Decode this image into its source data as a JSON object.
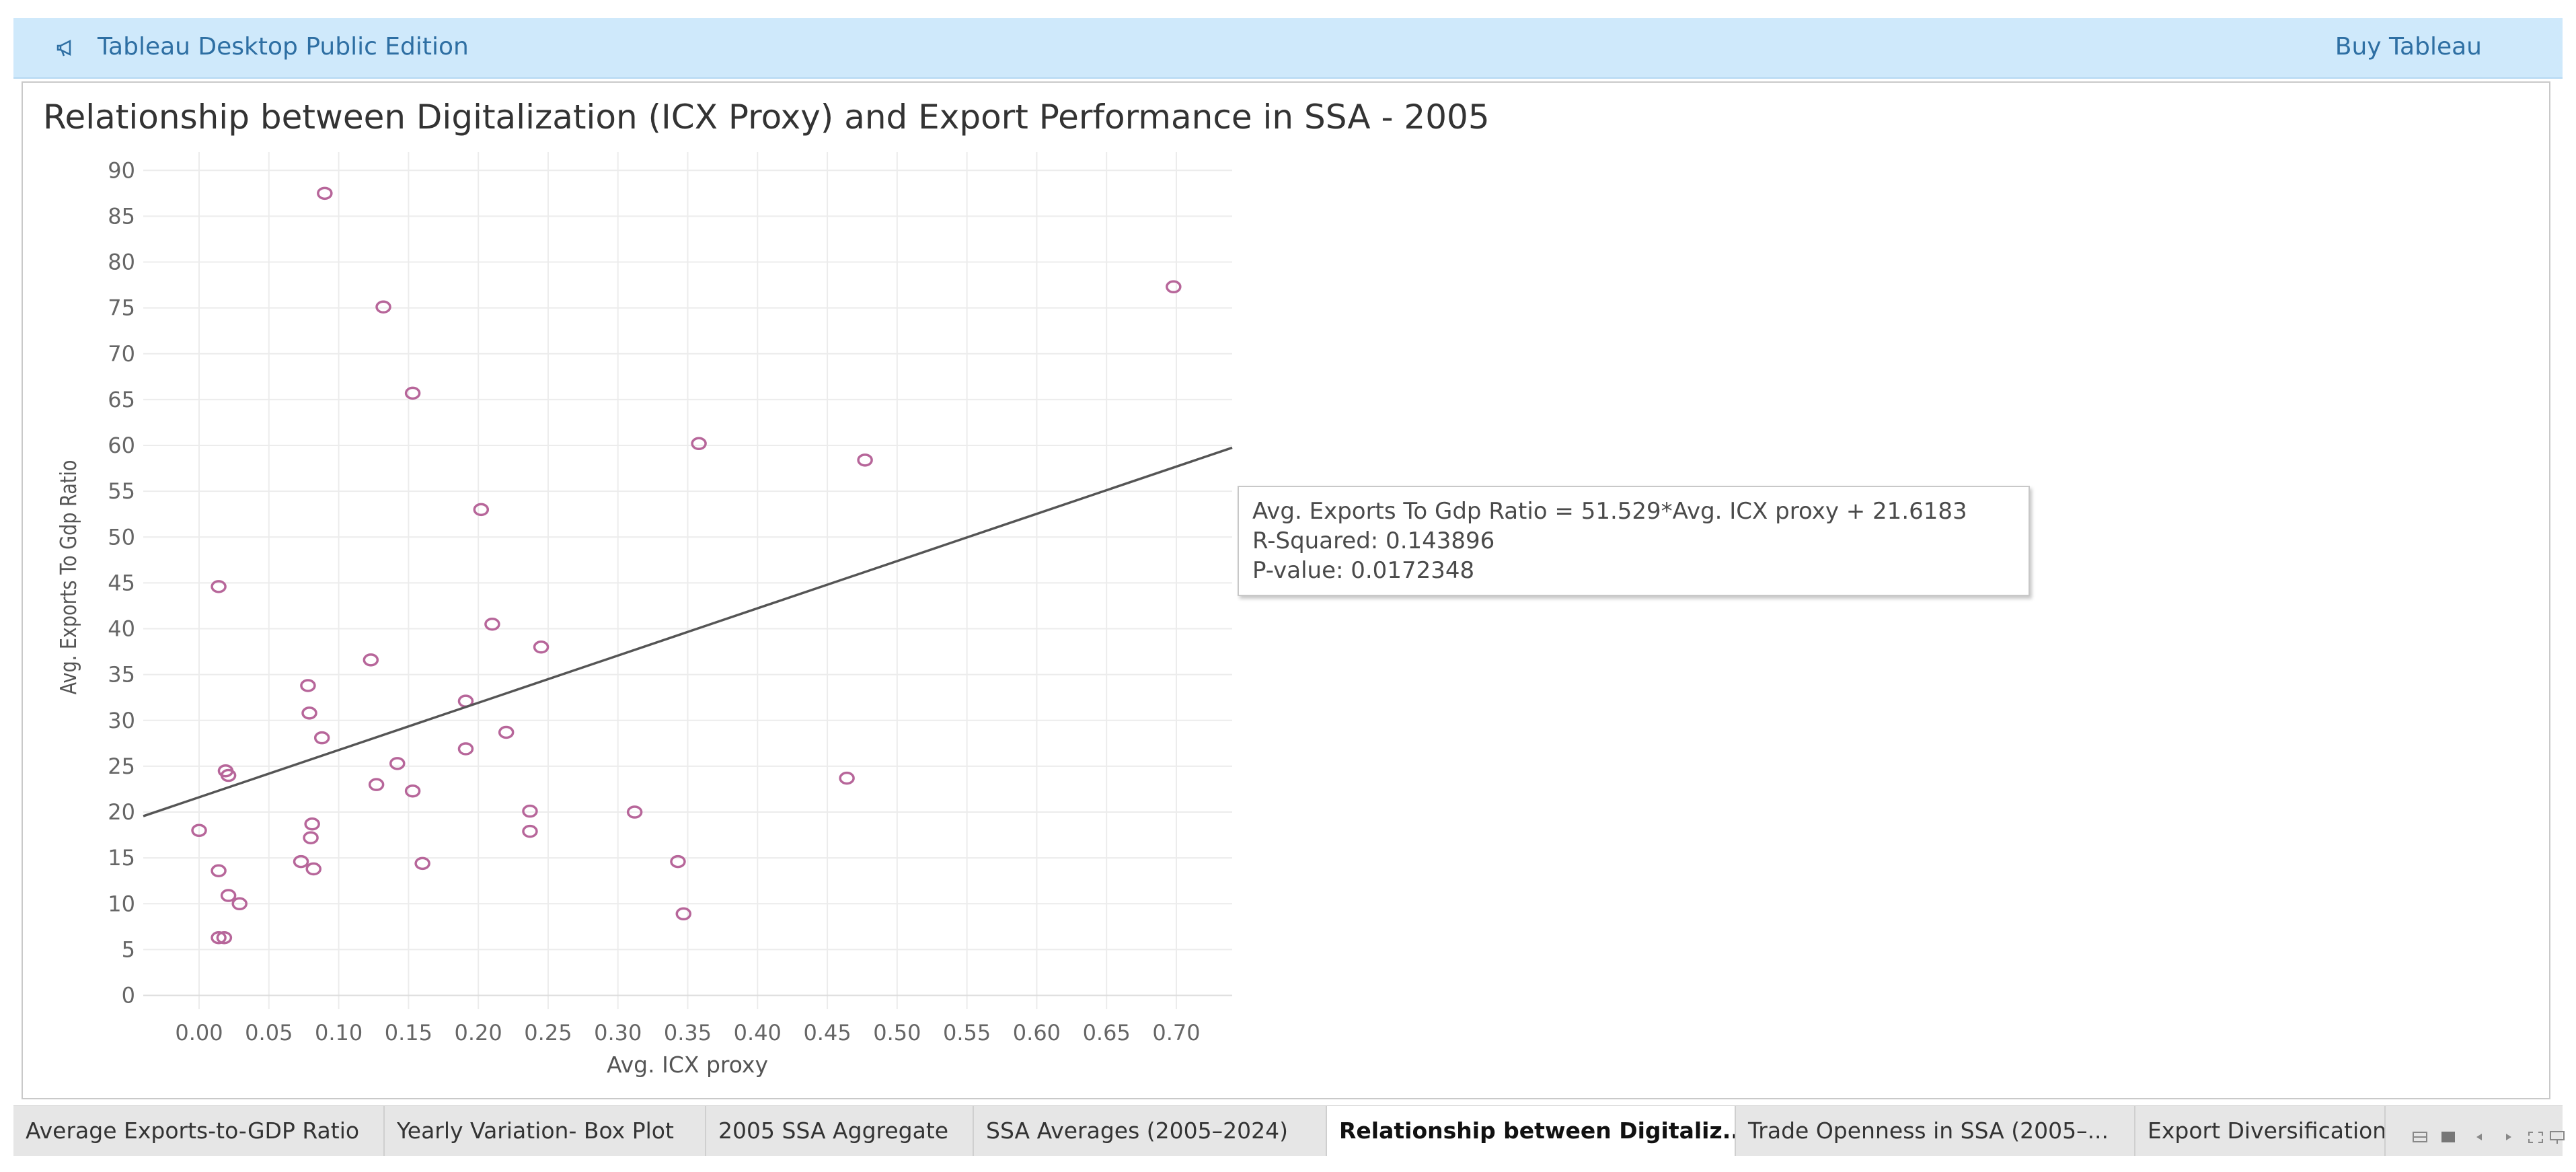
{
  "banner": {
    "title": "Tableau Desktop Public Edition",
    "buy_label": "Buy Tableau",
    "icon": "megaphone-icon",
    "background_color": "#cfe9fb",
    "text_color": "#2e6fa3"
  },
  "viz": {
    "title": "Relationship between Digitalization (ICX Proxy) and Export Performance in SSA - 2005"
  },
  "chart_data": {
    "type": "scatter",
    "title": "Relationship between Digitalization (ICX Proxy) and Export Performance in SSA - 2005",
    "xlabel": "Avg. ICX proxy",
    "ylabel": "Avg. Exports To Gdp Ratio",
    "xlim": [
      -0.04,
      0.74
    ],
    "ylim": [
      -1.5,
      92
    ],
    "x_ticks": [
      "0.00",
      "0.05",
      "0.10",
      "0.15",
      "0.20",
      "0.25",
      "0.30",
      "0.35",
      "0.40",
      "0.45",
      "0.50",
      "0.55",
      "0.60",
      "0.65",
      "0.70"
    ],
    "x_tick_values": [
      0,
      0.05,
      0.1,
      0.15,
      0.2,
      0.25,
      0.3,
      0.35,
      0.4,
      0.45,
      0.5,
      0.55,
      0.6,
      0.65,
      0.7
    ],
    "y_ticks": [
      "0",
      "5",
      "10",
      "15",
      "20",
      "25",
      "30",
      "35",
      "40",
      "45",
      "50",
      "55",
      "60",
      "65",
      "70",
      "75",
      "80",
      "85",
      "90"
    ],
    "y_tick_values": [
      0,
      5,
      10,
      15,
      20,
      25,
      30,
      35,
      40,
      45,
      50,
      55,
      60,
      65,
      70,
      75,
      80,
      85,
      90
    ],
    "grid": true,
    "marker_color": "#b7669a",
    "series": [
      {
        "name": "Countries",
        "points": [
          [
            0.09,
            87.5
          ],
          [
            0.132,
            75.1
          ],
          [
            0.153,
            65.7
          ],
          [
            0.202,
            53.0
          ],
          [
            0.358,
            60.2
          ],
          [
            0.477,
            58.4
          ],
          [
            0.698,
            77.3
          ],
          [
            0.014,
            44.6
          ],
          [
            0.21,
            40.5
          ],
          [
            0.245,
            38.0
          ],
          [
            0.123,
            36.6
          ],
          [
            0.078,
            33.8
          ],
          [
            0.079,
            30.8
          ],
          [
            0.191,
            32.1
          ],
          [
            0.088,
            28.1
          ],
          [
            0.22,
            28.7
          ],
          [
            0.191,
            26.9
          ],
          [
            0.142,
            25.3
          ],
          [
            0.019,
            24.5
          ],
          [
            0.021,
            24.0
          ],
          [
            0.127,
            23.0
          ],
          [
            0.153,
            22.3
          ],
          [
            0.464,
            23.7
          ],
          [
            0.237,
            20.1
          ],
          [
            0.312,
            20.0
          ],
          [
            0.0,
            18.0
          ],
          [
            0.081,
            18.7
          ],
          [
            0.237,
            17.9
          ],
          [
            0.08,
            17.2
          ],
          [
            0.073,
            14.6
          ],
          [
            0.082,
            13.8
          ],
          [
            0.16,
            14.4
          ],
          [
            0.343,
            14.6
          ],
          [
            0.014,
            13.6
          ],
          [
            0.021,
            10.9
          ],
          [
            0.029,
            10.0
          ],
          [
            0.347,
            8.9
          ],
          [
            0.014,
            6.3
          ],
          [
            0.018,
            6.3
          ]
        ]
      }
    ],
    "trend_line": {
      "slope": 51.529,
      "intercept": 21.6183,
      "x_range": [
        -0.04,
        0.74
      ],
      "color": "#555555"
    },
    "tooltip": {
      "equation": "Avg. Exports To Gdp Ratio = 51.529*Avg. ICX proxy + 21.6183",
      "r_squared": "R-Squared: 0.143896",
      "p_value": "P-value: 0.0172348"
    }
  },
  "tabs": [
    {
      "label": "Average Exports-to-GDP Ratio",
      "active": false
    },
    {
      "label": "Yearly Variation- Box Plot",
      "active": false
    },
    {
      "label": "2005 SSA Aggregate",
      "active": false
    },
    {
      "label": "SSA Averages (2005–2024)",
      "active": false
    },
    {
      "label": "Relationship between Digitaliz...",
      "active": true
    },
    {
      "label": "Trade Openness in SSA (2005–...",
      "active": false
    },
    {
      "label": "Export Diversification",
      "active": false
    }
  ],
  "tab_controls": [
    "sheet-sorter-icon",
    "filmstrip-icon",
    "prev-tab-icon",
    "next-tab-icon",
    "fullscreen-icon",
    "presentation-icon"
  ]
}
